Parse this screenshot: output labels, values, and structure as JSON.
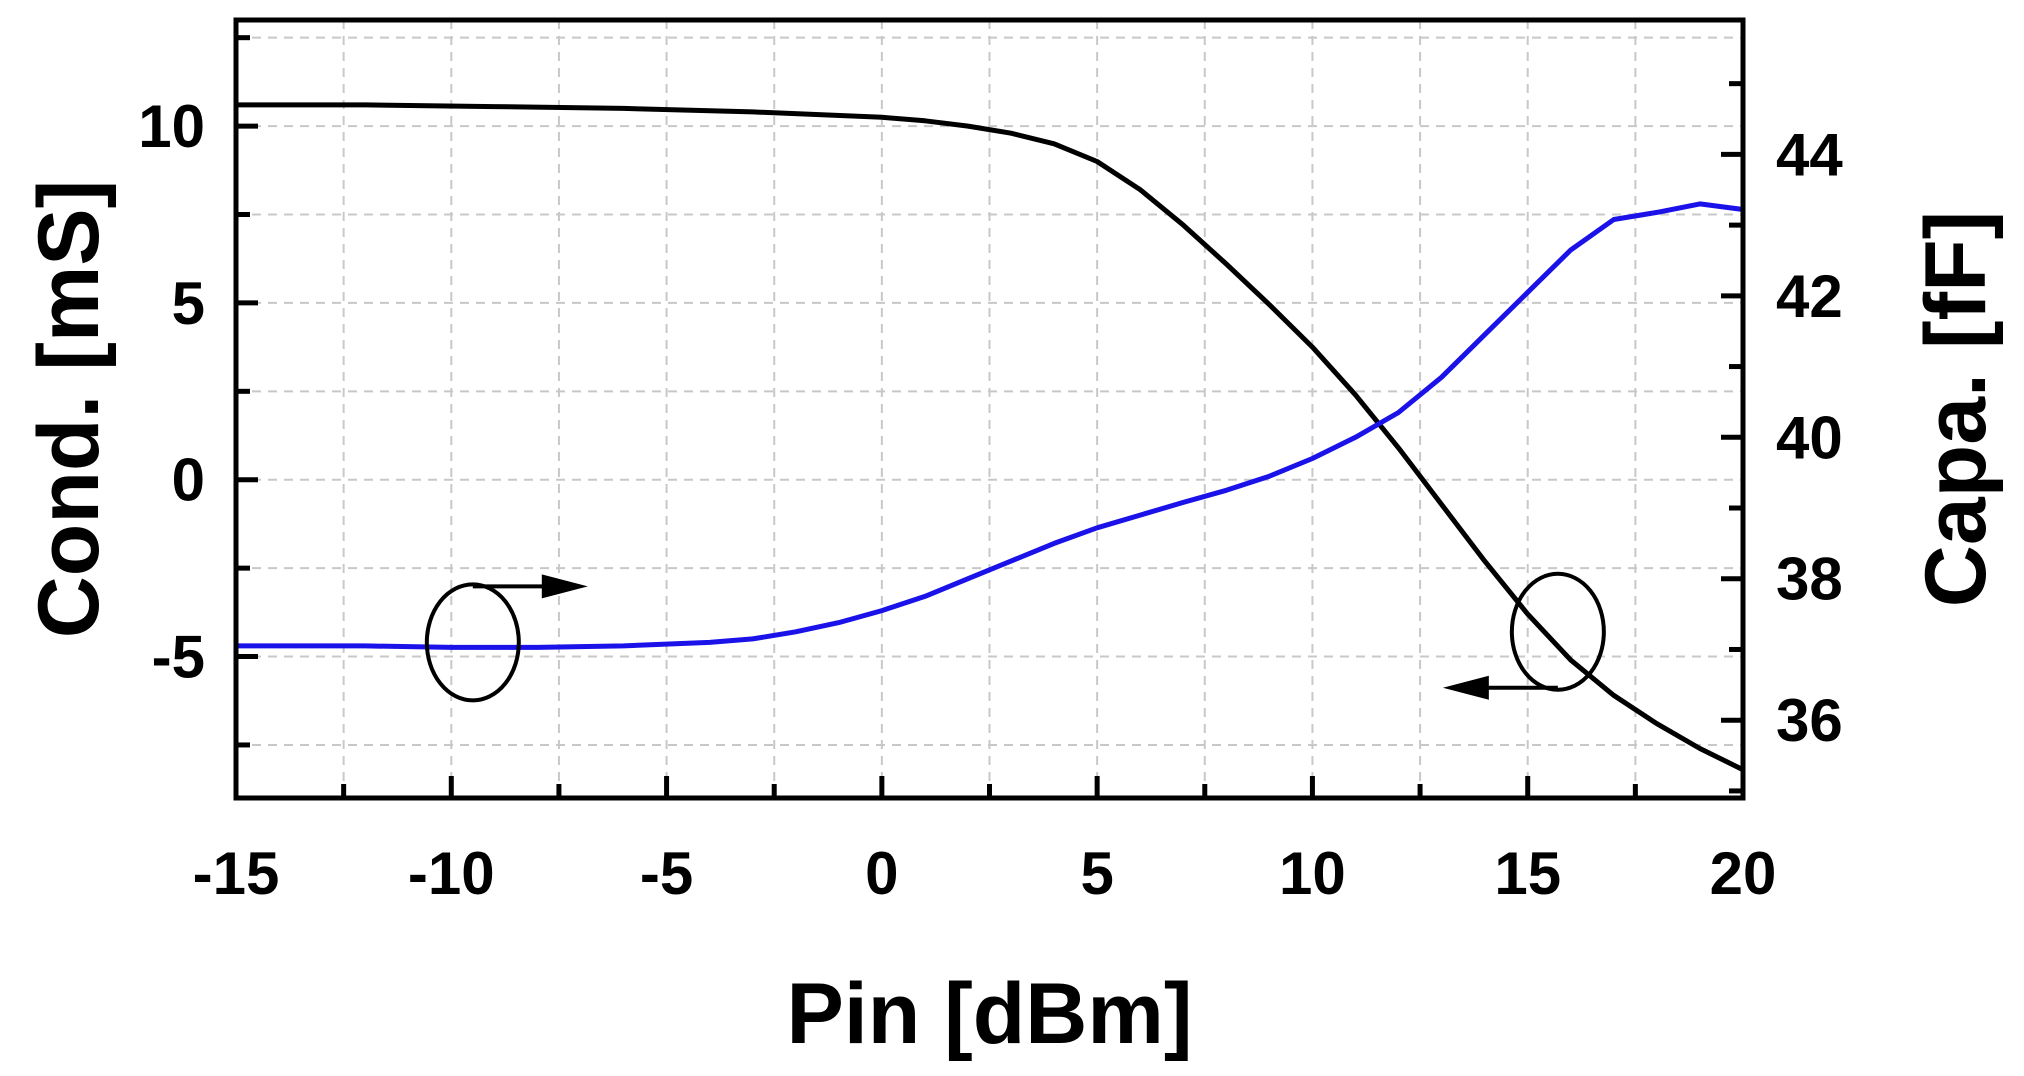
{
  "chart_data": {
    "type": "line",
    "xlabel": "Pin [dBm]",
    "ylabel_left": "Cond. [mS]",
    "ylabel_right": "Capa. [fF]",
    "xlim": [
      -15,
      20
    ],
    "ylim_left": [
      -9,
      13
    ],
    "ylim_right": [
      34.9,
      45.9
    ],
    "x_ticks": [
      -15,
      -10,
      -5,
      0,
      5,
      10,
      15,
      20
    ],
    "y_ticks_left": [
      -5,
      0,
      5,
      10
    ],
    "y_ticks_right": [
      36,
      38,
      40,
      42,
      44
    ],
    "grid": true,
    "series": [
      {
        "axis": "left",
        "color": "#000000",
        "x": [
          -15,
          -12,
          -9,
          -6,
          -3,
          0,
          1,
          2,
          3,
          4,
          5,
          6,
          7,
          8,
          9,
          10,
          11,
          12,
          13,
          14,
          15,
          16,
          17,
          18,
          19,
          20
        ],
        "y": [
          10.6,
          10.6,
          10.55,
          10.5,
          10.4,
          10.25,
          10.15,
          10.0,
          9.8,
          9.5,
          9.0,
          8.2,
          7.2,
          6.1,
          4.95,
          3.75,
          2.4,
          0.9,
          -0.7,
          -2.3,
          -3.8,
          -5.1,
          -6.1,
          -6.9,
          -7.6,
          -8.2
        ]
      },
      {
        "axis": "right",
        "color": "#1a12e8",
        "x": [
          -15,
          -12,
          -10,
          -8,
          -6,
          -4,
          -3,
          -2,
          -1,
          0,
          1,
          2,
          3,
          4,
          5,
          6,
          7,
          8,
          9,
          10,
          11,
          12,
          13,
          14,
          15,
          16,
          17,
          18,
          19,
          20
        ],
        "y": [
          37.05,
          37.05,
          37.03,
          37.03,
          37.05,
          37.1,
          37.15,
          37.25,
          37.38,
          37.55,
          37.75,
          38.0,
          38.25,
          38.5,
          38.72,
          38.9,
          39.08,
          39.25,
          39.45,
          39.7,
          40.0,
          40.35,
          40.85,
          41.45,
          42.05,
          42.65,
          43.08,
          43.18,
          43.3,
          43.22
        ]
      }
    ],
    "annotations": [
      {
        "type": "ellipse-arrow",
        "points_to": "right",
        "x": -9.5,
        "y_left": -4.6
      },
      {
        "type": "ellipse-arrow",
        "points_to": "left",
        "x": 15.7,
        "y_left": -4.3
      }
    ]
  }
}
